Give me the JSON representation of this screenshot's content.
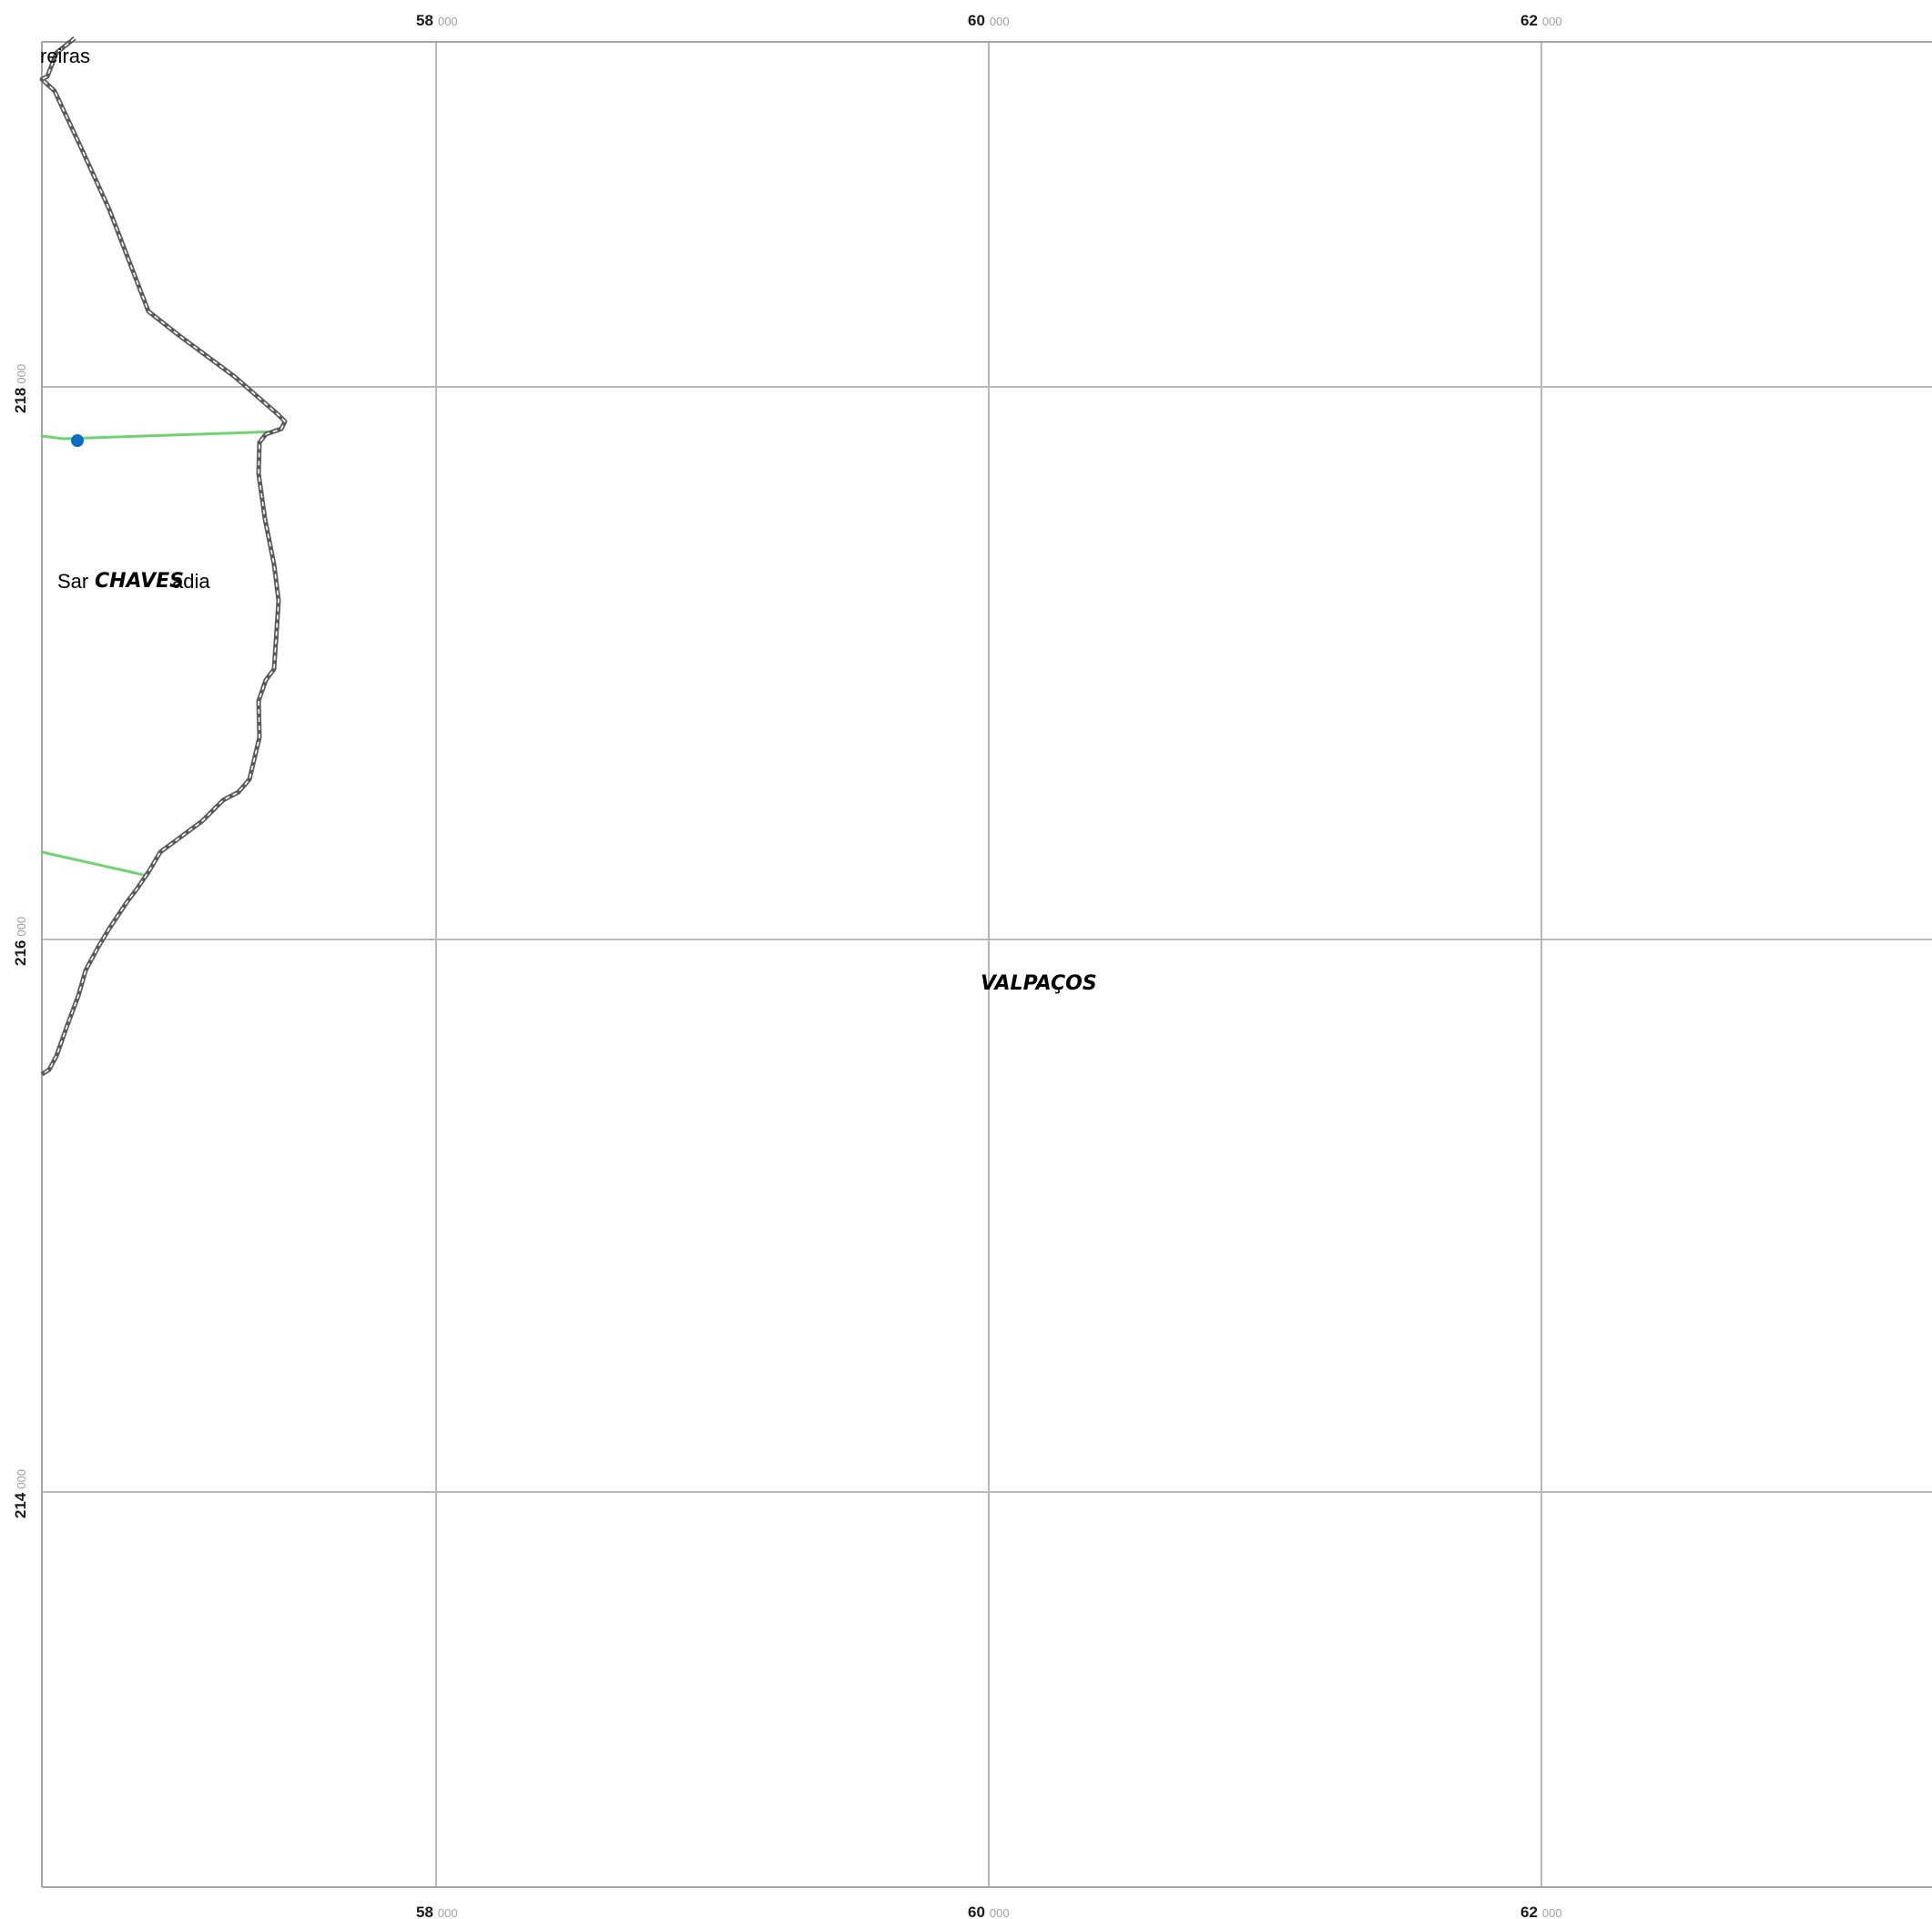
{
  "colors": {
    "background": "#ffffff",
    "grid": "#b9b9b9",
    "frame": "#a6a6a6",
    "boundary_outer": "#5a5a5a",
    "boundary_inner": "#ffffff",
    "road": "#6fd46f",
    "point": "#0a6fc4"
  },
  "grid": {
    "top_labels": [
      {
        "major": "58",
        "minor": "000"
      },
      {
        "major": "60",
        "minor": "000"
      },
      {
        "major": "62",
        "minor": "000"
      }
    ],
    "bottom_labels": [
      {
        "major": "58",
        "minor": "000"
      },
      {
        "major": "60",
        "minor": "000"
      },
      {
        "major": "62",
        "minor": "000"
      }
    ],
    "left_labels": [
      {
        "major": "218",
        "minor": "000"
      },
      {
        "major": "216",
        "minor": "000"
      },
      {
        "major": "214",
        "minor": "000"
      }
    ]
  },
  "places": {
    "top_left": "reiras",
    "chaves_area_prefix": "Sar",
    "chaves_area_suffix": "adia"
  },
  "municipalities": {
    "chaves": "CHAVES",
    "valpacos": "VALPAÇOS"
  },
  "icons": {
    "point_marker": "circle-point-icon"
  }
}
